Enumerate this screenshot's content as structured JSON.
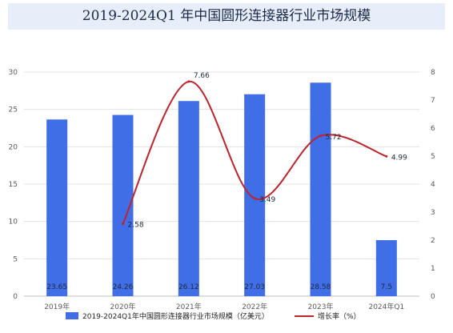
{
  "chart_data": {
    "type": "bar",
    "title": "2019-2024Q1 年中国圆形连接器行业市场规模",
    "categories": [
      "2019年",
      "2020年",
      "2021年",
      "2022年",
      "2023年",
      "2024年Q1"
    ],
    "series": [
      {
        "name": "2019-2024Q1年中国圆形连接器行业市场规模（亿美元）",
        "type": "bar",
        "axis": "left",
        "color": "#3f6ee6",
        "values": [
          23.65,
          24.26,
          26.12,
          27.03,
          28.58,
          7.5
        ],
        "labels": [
          "23.65",
          "24.26",
          "26.12",
          "27.03",
          "28.58",
          "7.5"
        ]
      },
      {
        "name": "增长率（%）",
        "type": "line",
        "axis": "right",
        "color": "#c0232a",
        "values": [
          null,
          2.58,
          7.66,
          3.49,
          5.72,
          4.99
        ],
        "labels": [
          "",
          "2.58",
          "7.66",
          "3.49",
          "5.72",
          "4.99"
        ]
      }
    ],
    "y_left": {
      "range": [
        0,
        30
      ],
      "ticks": [
        "0",
        "5",
        "10",
        "15",
        "20",
        "25",
        "30"
      ]
    },
    "y_right": {
      "range": [
        0,
        8
      ],
      "ticks": [
        "0",
        "1",
        "2",
        "3",
        "4",
        "5",
        "6",
        "7",
        "8"
      ]
    },
    "grid": true,
    "legend": "bottom"
  }
}
